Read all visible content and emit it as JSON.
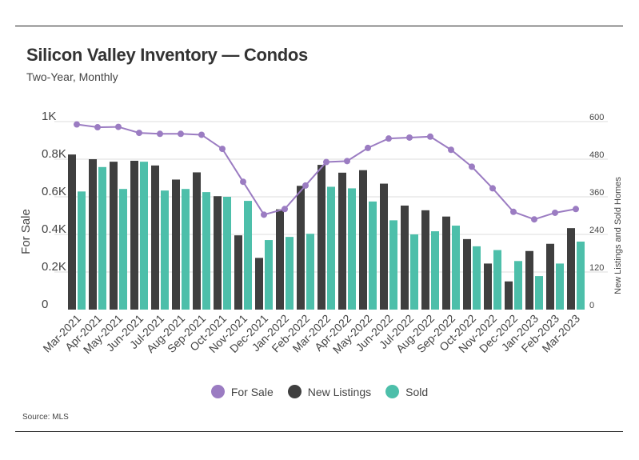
{
  "header": {
    "title": "Silicon Valley Inventory — Condos",
    "subtitle": "Two-Year, Monthly"
  },
  "footer": {
    "source": "Source:  MLS"
  },
  "colors": {
    "for_sale": "#9b7cc2",
    "new_listings": "#3f3f3f",
    "sold": "#4dbfaa",
    "grid": "#dcdcdc"
  },
  "chart_data": {
    "type": "bar",
    "title": "Silicon Valley Inventory — Condos",
    "subtitle": "Two-Year, Monthly",
    "categories": [
      "Mar-2021",
      "Apr-2021",
      "May-2021",
      "Jun-2021",
      "Jul-2021",
      "Aug-2021",
      "Sep-2021",
      "Oct-2021",
      "Nov-2021",
      "Dec-2021",
      "Jan-2022",
      "Feb-2022",
      "Mar-2022",
      "Apr-2022",
      "May-2022",
      "Jun-2022",
      "Jul-2022",
      "Aug-2022",
      "Sep-2022",
      "Oct-2022",
      "Nov-2022",
      "Dec-2022",
      "Jan-2023",
      "Feb-2023",
      "Mar-2023"
    ],
    "ylabel": "For Sale",
    "y2label": "New Listings and Sold Homes",
    "ylim": [
      0,
      1000
    ],
    "y2lim": [
      0,
      600
    ],
    "yticks": [
      "0",
      "0.2K",
      "0.4K",
      "0.6K",
      "0.8K",
      "1K"
    ],
    "y2ticks": [
      "0",
      "120",
      "240",
      "360",
      "480",
      "600"
    ],
    "grid": true,
    "legend_position": "bottom",
    "series": [
      {
        "name": "For Sale",
        "type": "line",
        "axis": "left",
        "values": [
          985,
          970,
          972,
          940,
          935,
          935,
          930,
          855,
          680,
          505,
          535,
          660,
          785,
          790,
          860,
          910,
          915,
          920,
          850,
          760,
          645,
          520,
          480,
          515,
          535
        ]
      },
      {
        "name": "New Listings",
        "type": "bar",
        "axis": "right",
        "values": [
          495,
          480,
          472,
          475,
          460,
          415,
          438,
          362,
          237,
          165,
          320,
          395,
          462,
          437,
          445,
          402,
          332,
          317,
          297,
          225,
          147,
          90,
          187,
          210,
          260
        ]
      },
      {
        "name": "Sold",
        "type": "bar",
        "axis": "right",
        "values": [
          377,
          455,
          385,
          472,
          380,
          385,
          375,
          360,
          347,
          222,
          232,
          242,
          392,
          387,
          345,
          285,
          240,
          250,
          268,
          202,
          190,
          155,
          107,
          147,
          217
        ]
      }
    ]
  }
}
